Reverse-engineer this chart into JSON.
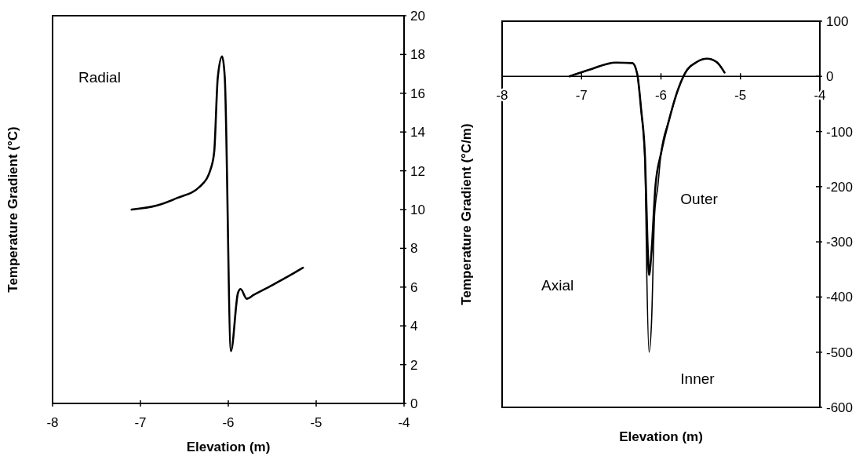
{
  "chart_data": [
    {
      "type": "line",
      "xlabel": "Elevation (m)",
      "ylabel": "Temperature Gradient (°C)",
      "annotations": [
        "Radial"
      ],
      "xlim": [
        -8,
        -4
      ],
      "xticks": [
        -8,
        -7,
        -6,
        -5,
        -4
      ],
      "ylim": [
        0,
        20
      ],
      "yticks": [
        0,
        2,
        4,
        6,
        8,
        10,
        12,
        14,
        16,
        18,
        20
      ],
      "grid": false,
      "marker": "none",
      "line_style": "solid",
      "series": [
        {
          "color": "#000000",
          "x": [
            -7.1,
            -6.82,
            -6.58,
            -6.32,
            -6.2,
            -6.16,
            -6.12,
            -6.07,
            -6.04,
            -5.97,
            -5.89,
            -5.86,
            -5.79,
            -5.71,
            -5.5,
            -5.3,
            -5.15
          ],
          "values": [
            10.0,
            10.2,
            10.6,
            11.2,
            12.1,
            13.0,
            16.8,
            17.9,
            16.8,
            2.7,
            5.7,
            5.9,
            5.4,
            5.6,
            6.1,
            6.6,
            7.0
          ]
        }
      ]
    },
    {
      "type": "line",
      "xlabel": "Elevation (m)",
      "ylabel": "Temperature Gradient (°C/m)",
      "annotations": [
        "Axial"
      ],
      "xlim": [
        -8,
        -4
      ],
      "xticks": [
        -8,
        -7,
        -6,
        -5,
        -4
      ],
      "ylim": [
        -600,
        100
      ],
      "yticks": [
        -600,
        -500,
        -400,
        -300,
        -200,
        -100,
        0,
        100
      ],
      "grid": false,
      "marker": "none",
      "line_style": "solid",
      "series": [
        {
          "name": "Outer",
          "color": "#000000",
          "x": [
            -7.15,
            -6.9,
            -6.57,
            -6.36,
            -6.3,
            -6.25,
            -6.2,
            -6.17,
            -6.15,
            -6.12,
            -6.07,
            -6.0,
            -5.9,
            -5.8,
            -5.7,
            -5.55,
            -5.42,
            -5.3,
            -5.2
          ],
          "values": [
            0,
            12,
            25,
            24,
            5,
            -60,
            -150,
            -300,
            -360,
            -320,
            -200,
            -140,
            -80,
            -30,
            5,
            26,
            32,
            26,
            7
          ]
        },
        {
          "name": "Inner",
          "color": "#000000",
          "x": [
            -7.15,
            -6.9,
            -6.57,
            -6.36,
            -6.3,
            -6.25,
            -6.2,
            -6.18,
            -6.15,
            -6.12,
            -6.08,
            -6.04,
            -6.0,
            -5.9,
            -5.8,
            -5.7,
            -5.55,
            -5.42,
            -5.3,
            -5.2
          ],
          "values": [
            0,
            12,
            25,
            24,
            5,
            -60,
            -160,
            -350,
            -500,
            -450,
            -250,
            -200,
            -140,
            -80,
            -30,
            5,
            26,
            32,
            26,
            7
          ]
        }
      ]
    }
  ]
}
